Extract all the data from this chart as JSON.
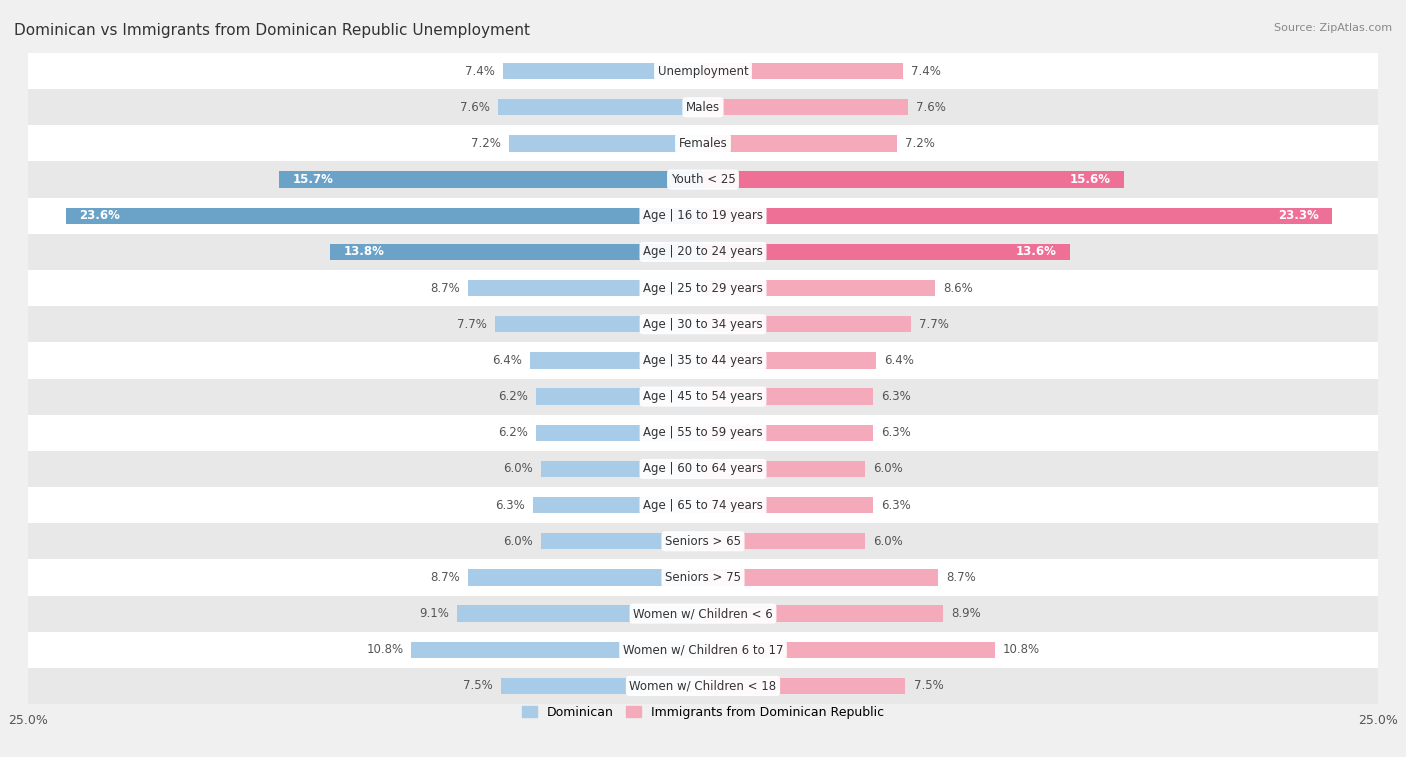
{
  "title": "Dominican vs Immigrants from Dominican Republic Unemployment",
  "source": "Source: ZipAtlas.com",
  "categories": [
    "Unemployment",
    "Males",
    "Females",
    "Youth < 25",
    "Age | 16 to 19 years",
    "Age | 20 to 24 years",
    "Age | 25 to 29 years",
    "Age | 30 to 34 years",
    "Age | 35 to 44 years",
    "Age | 45 to 54 years",
    "Age | 55 to 59 years",
    "Age | 60 to 64 years",
    "Age | 65 to 74 years",
    "Seniors > 65",
    "Seniors > 75",
    "Women w/ Children < 6",
    "Women w/ Children 6 to 17",
    "Women w/ Children < 18"
  ],
  "dominican": [
    7.4,
    7.6,
    7.2,
    15.7,
    23.6,
    13.8,
    8.7,
    7.7,
    6.4,
    6.2,
    6.2,
    6.0,
    6.3,
    6.0,
    8.7,
    9.1,
    10.8,
    7.5
  ],
  "immigrants": [
    7.4,
    7.6,
    7.2,
    15.6,
    23.3,
    13.6,
    8.6,
    7.7,
    6.4,
    6.3,
    6.3,
    6.0,
    6.3,
    6.0,
    8.7,
    8.9,
    10.8,
    7.5
  ],
  "dominican_color_normal": "#A8CCE8",
  "dominican_color_highlight": "#6BA3C8",
  "immigrant_color_normal": "#F4AABB",
  "immigrant_color_highlight": "#EE7096",
  "highlight_rows": [
    3,
    4,
    5
  ],
  "bg_color": "#f0f0f0",
  "row_bg_white": "#ffffff",
  "row_bg_gray": "#e8e8e8",
  "xlim": 25.0,
  "legend_dominican": "Dominican",
  "legend_immigrant": "Immigrants from Dominican Republic",
  "bar_height": 0.45,
  "title_fontsize": 11,
  "label_fontsize": 8.5,
  "cat_fontsize": 8.5
}
